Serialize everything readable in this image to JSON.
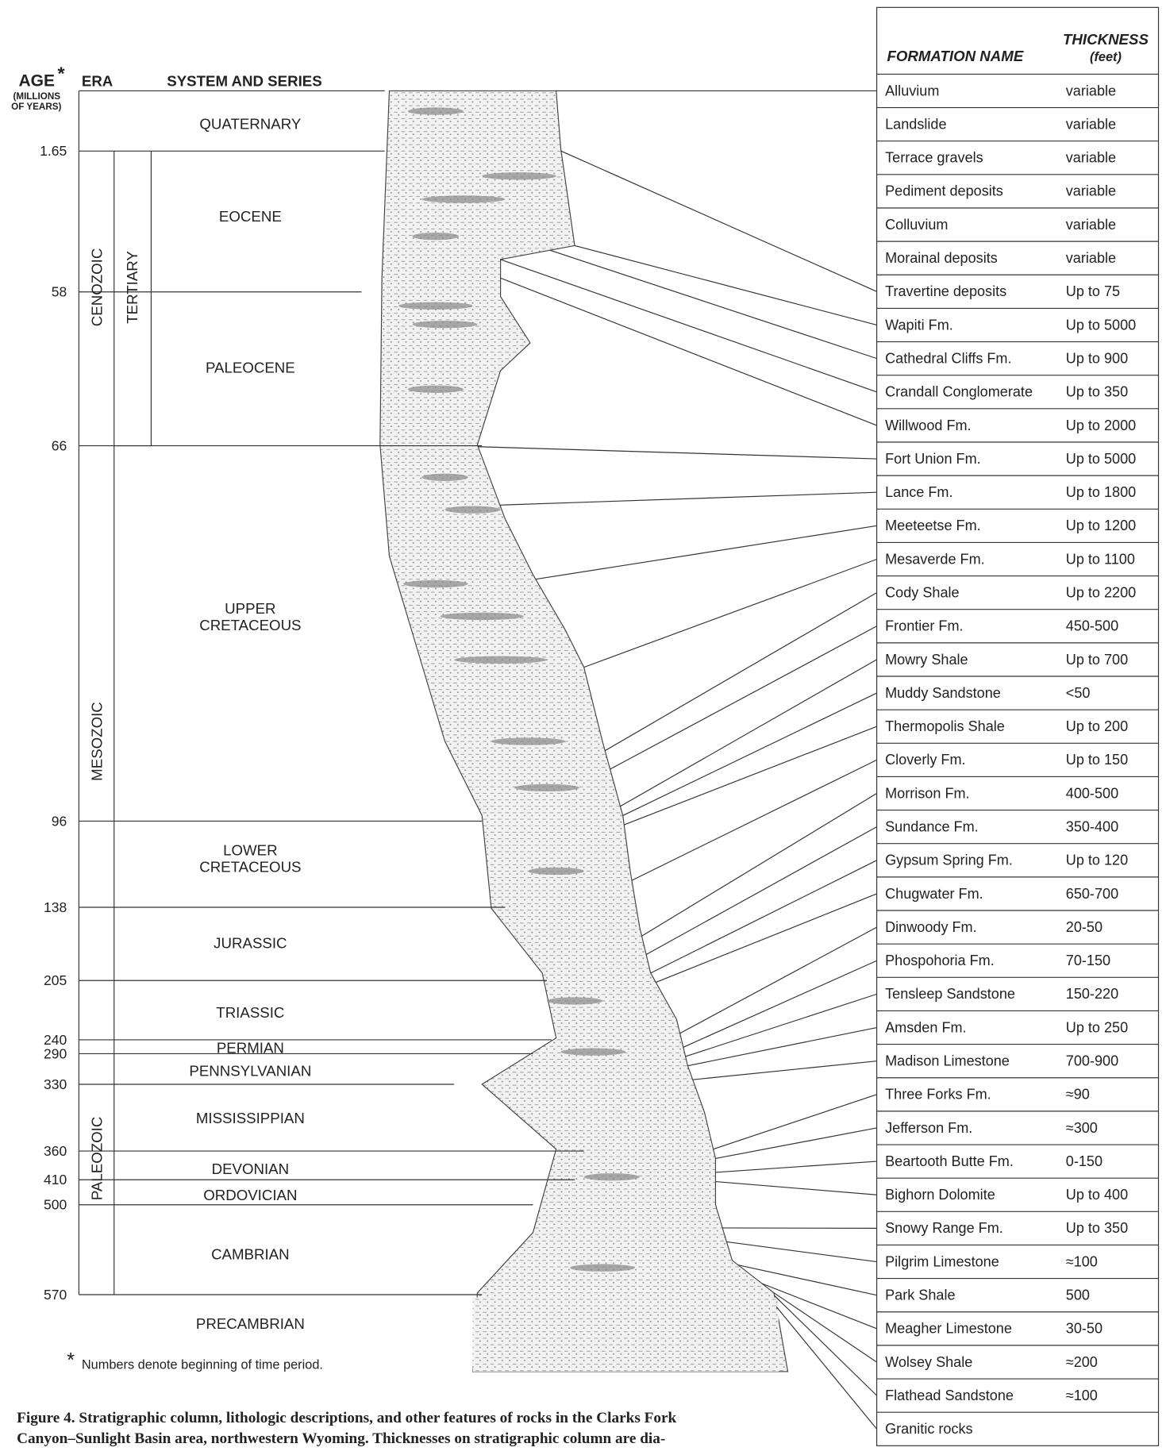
{
  "header": {
    "age": "AGE",
    "asterisk": "*",
    "age_units": [
      "(MILLIONS",
      "OF YEARS)"
    ],
    "era": "ERA",
    "system": "SYSTEM AND SERIES"
  },
  "ages": [
    "1.65",
    "58",
    "66",
    "96",
    "138",
    "205",
    "240",
    "290",
    "330",
    "360",
    "410",
    "500",
    "570"
  ],
  "eras": [
    "CENOZOIC",
    "TERTIARY",
    "MESOZOIC",
    "PALEOZOIC"
  ],
  "systems": [
    [
      "QUATERNARY"
    ],
    [
      "EOCENE"
    ],
    [
      "PALEOCENE"
    ],
    [
      "UPPER",
      "CRETACEOUS"
    ],
    [
      "LOWER",
      "CRETACEOUS"
    ],
    [
      "JURASSIC"
    ],
    [
      "TRIASSIC"
    ],
    [
      "PERMIAN"
    ],
    [
      "PENNSYLVANIAN"
    ],
    [
      "MISSISSIPPIAN"
    ],
    [
      "DEVONIAN"
    ],
    [
      "ORDOVICIAN"
    ],
    [
      "CAMBRIAN"
    ],
    [
      "PRECAMBRIAN"
    ]
  ],
  "table": {
    "name_header": "FORMATION NAME",
    "thickness_header": "THICKNESS",
    "thickness_units": "(feet)",
    "rows": [
      [
        "Alluvium",
        "variable"
      ],
      [
        "Landslide",
        "variable"
      ],
      [
        "Terrace gravels",
        "variable"
      ],
      [
        "Pediment deposits",
        "variable"
      ],
      [
        "Colluvium",
        "variable"
      ],
      [
        "Morainal deposits",
        "variable"
      ],
      [
        "Travertine deposits",
        "Up to 75"
      ],
      [
        "Wapiti Fm.",
        "Up to 5000"
      ],
      [
        "Cathedral Cliffs Fm.",
        "Up to 900"
      ],
      [
        "Crandall Conglomerate",
        "Up to 350"
      ],
      [
        "Willwood Fm.",
        "Up to 2000"
      ],
      [
        "Fort Union Fm.",
        "Up to 5000"
      ],
      [
        "Lance Fm.",
        "Up to 1800"
      ],
      [
        "Meeteetse Fm.",
        "Up to 1200"
      ],
      [
        "Mesaverde Fm.",
        "Up to 1100"
      ],
      [
        "Cody Shale",
        "Up to 2200"
      ],
      [
        "Frontier Fm.",
        "450-500"
      ],
      [
        "Mowry Shale",
        "Up to 700"
      ],
      [
        "Muddy Sandstone",
        "<50"
      ],
      [
        "Thermopolis Shale",
        "Up to 200"
      ],
      [
        "Cloverly Fm.",
        "Up to 150"
      ],
      [
        "Morrison Fm.",
        "400-500"
      ],
      [
        "Sundance Fm.",
        "350-400"
      ],
      [
        "Gypsum Spring Fm.",
        "Up to 120"
      ],
      [
        "Chugwater Fm.",
        "650-700"
      ],
      [
        "Dinwoody Fm.",
        "20-50"
      ],
      [
        "Phospohoria Fm.",
        "70-150"
      ],
      [
        "Tensleep Sandstone",
        "150-220"
      ],
      [
        "Amsden Fm.",
        "Up to 250"
      ],
      [
        "Madison Limestone",
        "700-900"
      ],
      [
        "Three Forks Fm.",
        "≈90"
      ],
      [
        "Jefferson Fm.",
        "≈300"
      ],
      [
        "Beartooth Butte Fm.",
        "0-150"
      ],
      [
        "Bighorn Dolomite",
        "Up to 400"
      ],
      [
        "Snowy Range Fm.",
        "Up to 350"
      ],
      [
        "Pilgrim Limestone",
        "≈100"
      ],
      [
        "Park Shale",
        "500"
      ],
      [
        "Meagher Limestone",
        "30-50"
      ],
      [
        "Wolsey Shale",
        "≈200"
      ],
      [
        "Flathead Sandstone",
        "≈100"
      ],
      [
        "Granitic rocks",
        ""
      ]
    ]
  },
  "footnote": {
    "asterisk": "*",
    "text": "Numbers denote beginning of time period."
  },
  "caption": [
    "Figure 4. Stratigraphic column, lithologic descriptions, and other features of rocks in the Clarks Fork",
    "Canyon–Sunlight Basin area, northwestern Wyoming. Thicknesses on stratigraphic column are dia-"
  ]
}
